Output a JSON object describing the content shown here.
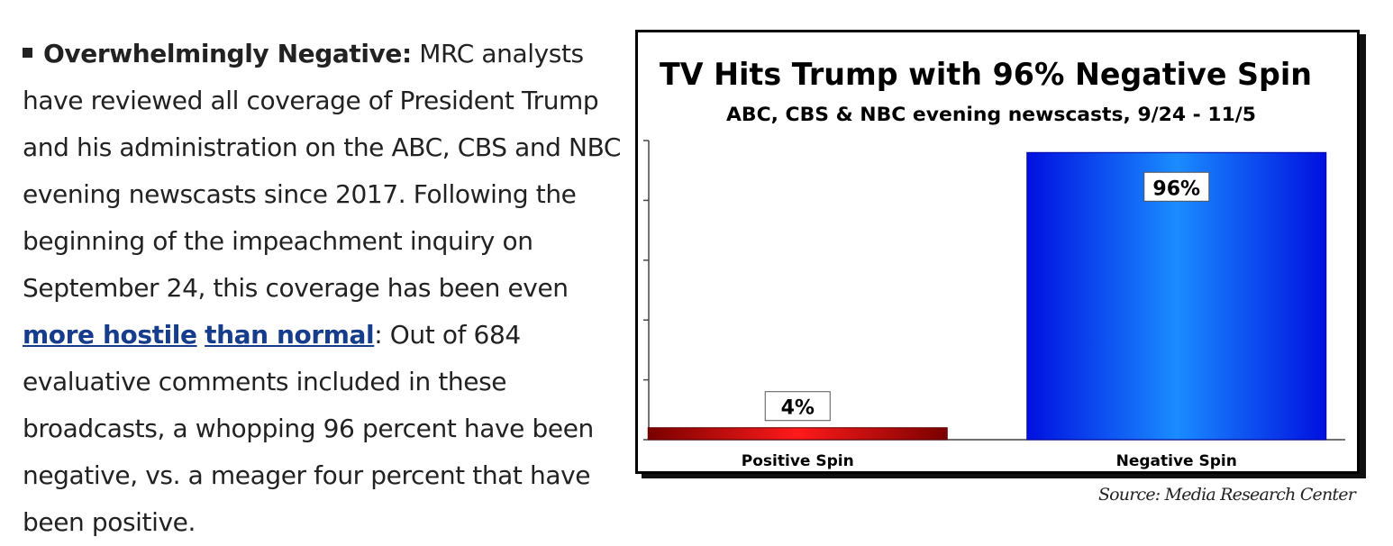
{
  "article": {
    "heading": "Overwhelmingly Negative:",
    "text_1": " MRC analysts have reviewed all coverage of President Trump and his administration on the ABC, CBS and NBC evening newscasts since 2017. Following the beginning of the impeachment inquiry on September 24, this coverage has been even ",
    "link_1": "more hostile",
    "space": " ",
    "link_2": "than normal",
    "text_2": ": Out of 684 evaluative comments included in these broadcasts, a whopping 96 percent have been negative, vs. a meager four percent that have been positive."
  },
  "chart_data": {
    "type": "bar",
    "title": "TV Hits Trump with 96% Negative Spin",
    "subtitle": "ABC, CBS & NBC evening newscasts, 9/24 - 11/5",
    "categories": [
      "Positive Spin",
      "Negative Spin"
    ],
    "values": [
      4,
      96
    ],
    "data_labels": [
      "4%",
      "96%"
    ],
    "colors": [
      "#c00000",
      "#0a2cff"
    ],
    "ylim": [
      0,
      100
    ],
    "ytick_step": 20,
    "ytick_labels_shown": false,
    "grid": false,
    "source": "Source: Media Research Center"
  }
}
